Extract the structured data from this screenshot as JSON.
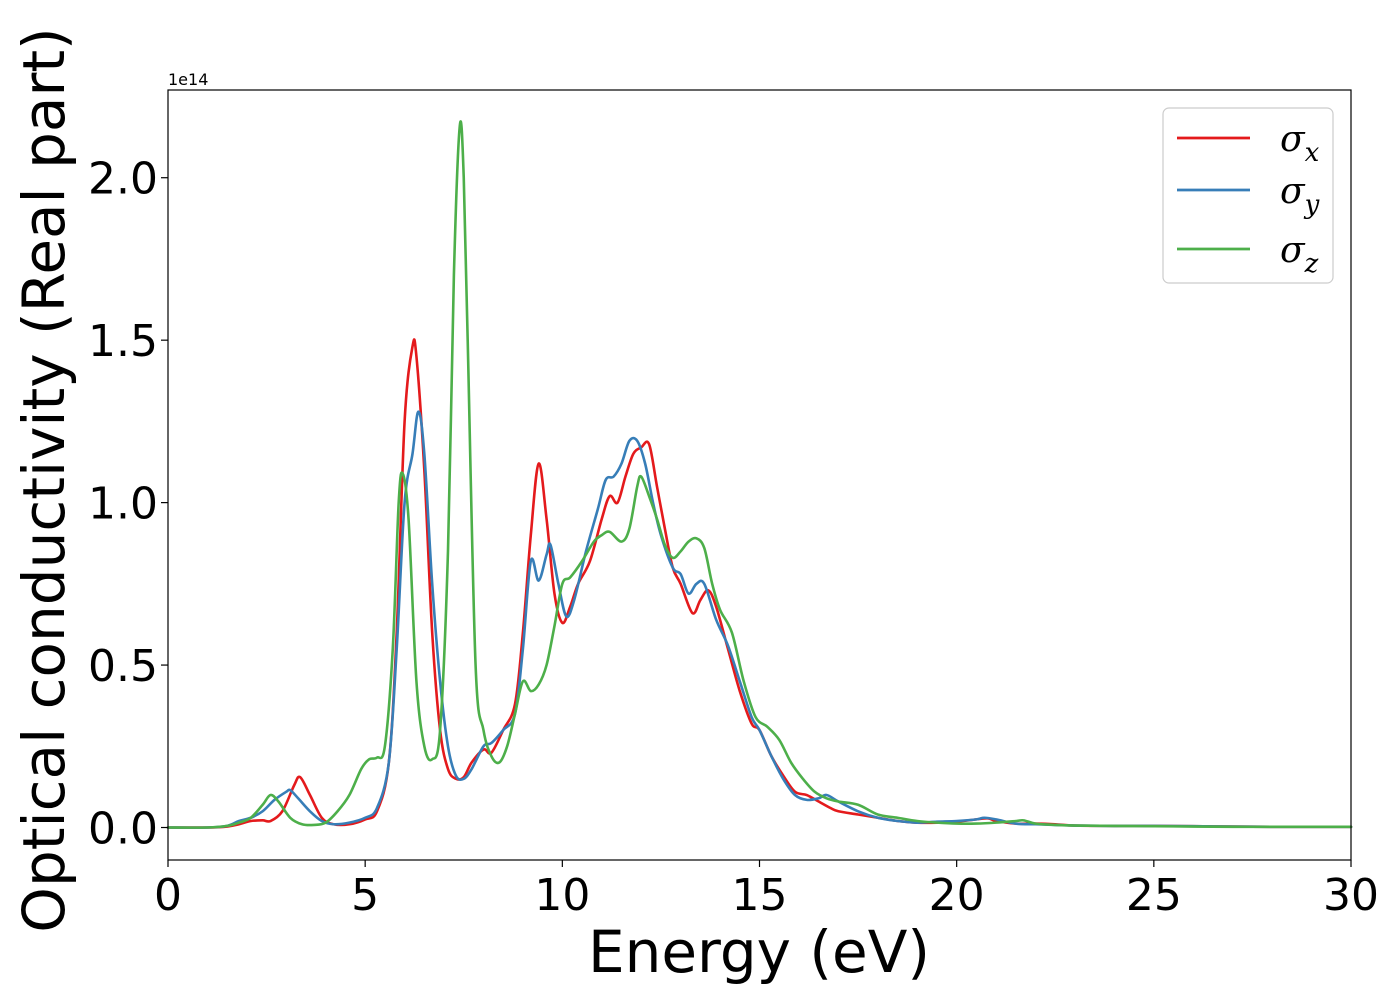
{
  "chart_data": {
    "type": "line",
    "title": "",
    "xlabel": "Energy (eV)",
    "ylabel": "Optical conductivity (Real part)",
    "y_offset_label": "1e14",
    "xlim": [
      0,
      30
    ],
    "ylim": [
      -0.1,
      2.27
    ],
    "xticks": [
      0,
      5,
      10,
      15,
      20,
      25,
      30
    ],
    "xtick_labels": [
      "0",
      "5",
      "10",
      "15",
      "20",
      "25",
      "30"
    ],
    "yticks": [
      0.0,
      0.5,
      1.0,
      1.5,
      2.0
    ],
    "ytick_labels": [
      "0.0",
      "0.5",
      "1.0",
      "1.5",
      "2.0"
    ],
    "grid": false,
    "legend_position": "top-right",
    "series": [
      {
        "name": "σx",
        "legend_base": "σ",
        "legend_sub": "x",
        "color": "#e41a1c",
        "x": [
          0,
          1,
          1.5,
          1.8,
          2.1,
          2.4,
          2.6,
          2.9,
          3.2,
          3.35,
          3.6,
          3.9,
          4.2,
          4.6,
          5.0,
          5.3,
          5.6,
          5.8,
          6.0,
          6.2,
          6.3,
          6.5,
          6.7,
          6.9,
          7.1,
          7.3,
          7.5,
          7.7,
          8.0,
          8.2,
          8.5,
          8.8,
          9.0,
          9.2,
          9.4,
          9.6,
          9.8,
          10.0,
          10.2,
          10.4,
          10.7,
          11.0,
          11.2,
          11.4,
          11.6,
          11.8,
          12.0,
          12.2,
          12.4,
          12.6,
          12.8,
          13.0,
          13.3,
          13.5,
          13.7,
          13.9,
          14.2,
          14.5,
          14.8,
          15.0,
          15.3,
          15.6,
          15.9,
          16.2,
          16.5,
          16.8,
          17.0,
          17.5,
          18.0,
          18.5,
          19.0,
          19.5,
          20.0,
          20.5,
          20.8,
          21.0,
          21.5,
          22.0,
          22.5,
          23,
          24,
          25,
          26,
          27,
          28,
          29,
          30
        ],
        "y": [
          0.0,
          0.0,
          0.003,
          0.01,
          0.02,
          0.022,
          0.02,
          0.05,
          0.13,
          0.155,
          0.1,
          0.03,
          0.01,
          0.01,
          0.025,
          0.05,
          0.2,
          0.6,
          1.25,
          1.48,
          1.45,
          1.1,
          0.6,
          0.3,
          0.18,
          0.15,
          0.155,
          0.2,
          0.24,
          0.23,
          0.3,
          0.38,
          0.6,
          0.9,
          1.12,
          0.95,
          0.72,
          0.63,
          0.68,
          0.75,
          0.82,
          0.95,
          1.02,
          1.0,
          1.08,
          1.15,
          1.17,
          1.18,
          1.05,
          0.92,
          0.8,
          0.75,
          0.66,
          0.7,
          0.73,
          0.68,
          0.55,
          0.42,
          0.32,
          0.3,
          0.22,
          0.16,
          0.11,
          0.1,
          0.08,
          0.06,
          0.05,
          0.04,
          0.03,
          0.02,
          0.015,
          0.015,
          0.018,
          0.025,
          0.028,
          0.02,
          0.012,
          0.012,
          0.01,
          0.006,
          0.005,
          0.005,
          0.004,
          0.003,
          0.002,
          0.002,
          0.002
        ]
      },
      {
        "name": "σy",
        "legend_base": "σ",
        "legend_sub": "y",
        "color": "#377eb8",
        "x": [
          0,
          1,
          1.5,
          1.8,
          2.1,
          2.4,
          2.7,
          3.0,
          3.1,
          3.3,
          3.6,
          3.9,
          4.2,
          4.6,
          5.0,
          5.3,
          5.6,
          5.8,
          6.0,
          6.2,
          6.35,
          6.5,
          6.7,
          6.9,
          7.1,
          7.3,
          7.5,
          7.7,
          8.0,
          8.2,
          8.5,
          8.8,
          9.0,
          9.2,
          9.4,
          9.6,
          9.7,
          9.9,
          10.1,
          10.3,
          10.6,
          10.9,
          11.1,
          11.3,
          11.5,
          11.7,
          11.9,
          12.1,
          12.3,
          12.5,
          12.8,
          13.0,
          13.2,
          13.4,
          13.6,
          13.9,
          14.2,
          14.5,
          14.8,
          15.0,
          15.3,
          15.6,
          15.9,
          16.2,
          16.5,
          16.7,
          17.0,
          17.5,
          18.0,
          18.5,
          19.0,
          19.5,
          20.0,
          20.5,
          20.7,
          21.0,
          21.5,
          22.0,
          22.5,
          23,
          24,
          25,
          26,
          27,
          28,
          29,
          30
        ],
        "y": [
          0.0,
          0.0,
          0.005,
          0.02,
          0.03,
          0.05,
          0.085,
          0.11,
          0.115,
          0.09,
          0.05,
          0.02,
          0.01,
          0.015,
          0.03,
          0.06,
          0.2,
          0.55,
          1.0,
          1.15,
          1.28,
          1.15,
          0.75,
          0.45,
          0.25,
          0.16,
          0.15,
          0.18,
          0.25,
          0.26,
          0.3,
          0.35,
          0.55,
          0.82,
          0.76,
          0.84,
          0.87,
          0.75,
          0.65,
          0.7,
          0.85,
          0.98,
          1.07,
          1.08,
          1.12,
          1.19,
          1.19,
          1.12,
          1.0,
          0.9,
          0.8,
          0.78,
          0.72,
          0.75,
          0.75,
          0.64,
          0.56,
          0.45,
          0.34,
          0.3,
          0.22,
          0.15,
          0.1,
          0.085,
          0.09,
          0.1,
          0.08,
          0.05,
          0.03,
          0.02,
          0.015,
          0.018,
          0.02,
          0.025,
          0.03,
          0.025,
          0.012,
          0.01,
          0.008,
          0.006,
          0.005,
          0.005,
          0.004,
          0.003,
          0.002,
          0.002,
          0.002
        ]
      },
      {
        "name": "σz",
        "legend_base": "σ",
        "legend_sub": "z",
        "color": "#4daf4a",
        "x": [
          0,
          1,
          1.5,
          1.8,
          2.1,
          2.4,
          2.6,
          2.8,
          3.1,
          3.4,
          3.7,
          4.0,
          4.3,
          4.6,
          4.9,
          5.1,
          5.3,
          5.5,
          5.7,
          5.85,
          5.95,
          6.1,
          6.3,
          6.5,
          6.7,
          6.9,
          7.1,
          7.25,
          7.4,
          7.5,
          7.6,
          7.8,
          8.0,
          8.2,
          8.4,
          8.6,
          8.8,
          9.0,
          9.2,
          9.4,
          9.6,
          9.8,
          10.0,
          10.2,
          10.5,
          10.8,
          11.0,
          11.2,
          11.5,
          11.7,
          11.9,
          12.0,
          12.2,
          12.4,
          12.6,
          12.8,
          13.0,
          13.2,
          13.4,
          13.6,
          13.8,
          14.0,
          14.3,
          14.6,
          14.9,
          15.2,
          15.5,
          15.8,
          16.1,
          16.4,
          16.7,
          17.0,
          17.5,
          18.0,
          18.5,
          19.0,
          19.5,
          20.0,
          20.5,
          21.0,
          21.5,
          21.7,
          22.0,
          22.5,
          23,
          24,
          25,
          26,
          27,
          28,
          29,
          30
        ],
        "y": [
          0.0,
          0.0,
          0.005,
          0.015,
          0.03,
          0.07,
          0.1,
          0.08,
          0.03,
          0.01,
          0.008,
          0.015,
          0.05,
          0.1,
          0.18,
          0.21,
          0.215,
          0.25,
          0.55,
          1.0,
          1.09,
          0.95,
          0.45,
          0.25,
          0.21,
          0.3,
          0.85,
          1.7,
          2.16,
          2.0,
          1.5,
          0.5,
          0.3,
          0.22,
          0.2,
          0.25,
          0.35,
          0.45,
          0.42,
          0.44,
          0.5,
          0.62,
          0.75,
          0.77,
          0.82,
          0.88,
          0.9,
          0.91,
          0.88,
          0.92,
          1.05,
          1.08,
          1.02,
          0.95,
          0.87,
          0.83,
          0.85,
          0.88,
          0.89,
          0.86,
          0.75,
          0.67,
          0.6,
          0.45,
          0.34,
          0.31,
          0.27,
          0.2,
          0.15,
          0.11,
          0.09,
          0.08,
          0.07,
          0.04,
          0.03,
          0.02,
          0.015,
          0.012,
          0.012,
          0.015,
          0.02,
          0.022,
          0.012,
          0.008,
          0.006,
          0.005,
          0.004,
          0.003,
          0.002,
          0.002,
          0.002,
          0.002
        ]
      }
    ]
  }
}
